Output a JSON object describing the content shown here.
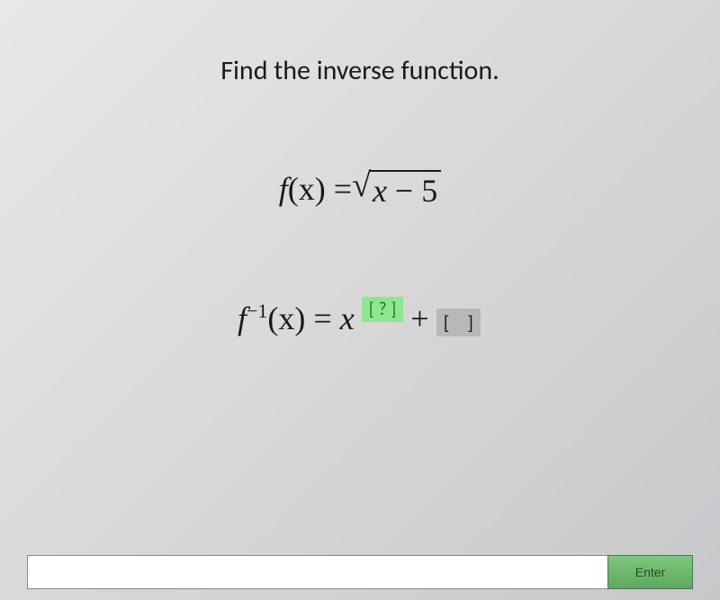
{
  "instruction": "Find the inverse function.",
  "equation": {
    "lhs_func": "f",
    "lhs_var": "(x)",
    "equals": " = ",
    "sqrt_inner_var": "x",
    "sqrt_inner_rest": " − 5"
  },
  "answer": {
    "lhs_func": "f",
    "inverse_exp": "−1",
    "lhs_var": "(x)",
    "equals": " = ",
    "rhs_var": "x",
    "blank1_open": "[",
    "blank1_q": " ? ",
    "blank1_close": "]",
    "plus": " + ",
    "blank2_open": "[",
    "blank2_close": "]"
  },
  "buttons": {
    "enter": "Enter"
  },
  "input": {
    "placeholder": ""
  },
  "colors": {
    "green_blank_bg": "#8de88d",
    "gray_blank_bg": "#b8b8b8",
    "enter_button_bg": "#6ab86a",
    "text_color": "#1a1a1a",
    "page_bg": "#e0e0e0"
  }
}
